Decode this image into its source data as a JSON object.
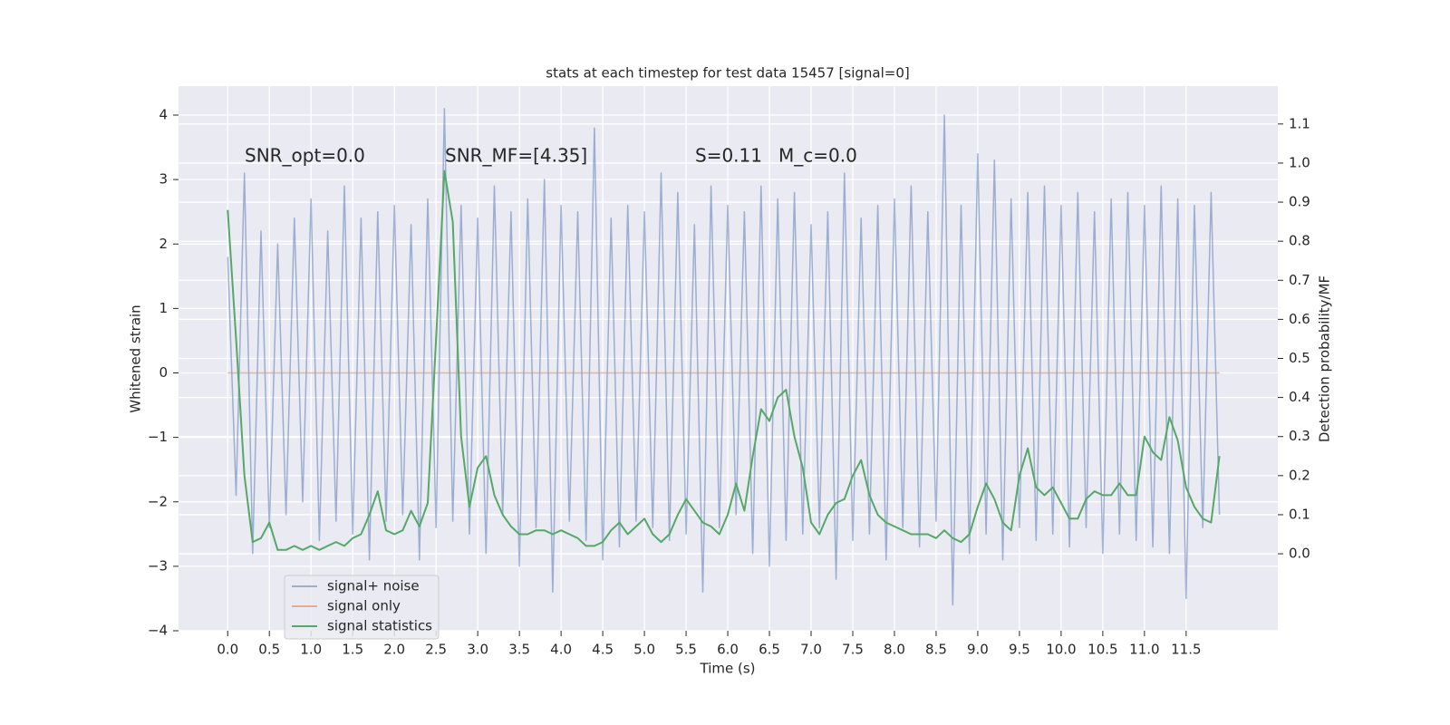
{
  "chart_data": {
    "type": "line",
    "title": "stats at each timestep for test data 15457 [signal=0]",
    "xlabel": "Time (s)",
    "ylabel": "Whitened strain",
    "y2label": "Detection probability/MF",
    "annotations": [
      "SNR_opt=0.0",
      "SNR_MF=[4.35]",
      "S=0.11",
      "M_c=0.0"
    ],
    "grid": true,
    "legend": "lower left",
    "background": "#eaeaf2",
    "x": [
      0.0,
      0.1,
      0.2,
      0.3,
      0.4,
      0.5,
      0.6,
      0.7,
      0.8,
      0.9,
      1.0,
      1.1,
      1.2,
      1.3,
      1.4,
      1.5,
      1.6,
      1.7,
      1.8,
      1.9,
      2.0,
      2.1,
      2.2,
      2.3,
      2.4,
      2.5,
      2.6,
      2.7,
      2.8,
      2.9,
      3.0,
      3.1,
      3.2,
      3.3,
      3.4,
      3.5,
      3.6,
      3.7,
      3.8,
      3.9,
      4.0,
      4.1,
      4.2,
      4.3,
      4.4,
      4.5,
      4.6,
      4.7,
      4.8,
      4.9,
      5.0,
      5.1,
      5.2,
      5.3,
      5.4,
      5.5,
      5.6,
      5.7,
      5.8,
      5.9,
      6.0,
      6.1,
      6.2,
      6.3,
      6.4,
      6.5,
      6.6,
      6.7,
      6.8,
      6.9,
      7.0,
      7.1,
      7.2,
      7.3,
      7.4,
      7.5,
      7.6,
      7.7,
      7.8,
      7.9,
      8.0,
      8.1,
      8.2,
      8.3,
      8.4,
      8.5,
      8.6,
      8.7,
      8.8,
      8.9,
      9.0,
      9.1,
      9.2,
      9.3,
      9.4,
      9.5,
      9.6,
      9.7,
      9.8,
      9.9,
      10.0,
      10.1,
      10.2,
      10.3,
      10.4,
      10.5,
      10.6,
      10.7,
      10.8,
      10.9,
      11.0,
      11.1,
      11.2,
      11.3,
      11.4,
      11.5,
      11.6,
      11.7,
      11.8,
      11.9
    ],
    "series": [
      {
        "name": "signal+ noise",
        "color": "#4c72b0",
        "opacity": 0.5,
        "values": [
          1.8,
          -1.9,
          3.1,
          -2.8,
          2.2,
          -2.4,
          2.0,
          -2.2,
          2.4,
          -2.0,
          2.7,
          -2.6,
          2.2,
          -2.3,
          2.9,
          -2.5,
          2.4,
          -2.9,
          2.5,
          -2.3,
          2.6,
          -2.2,
          2.3,
          -2.9,
          2.7,
          -2.4,
          4.1,
          -2.3,
          2.6,
          -2.5,
          2.4,
          -2.8,
          2.9,
          -2.2,
          2.5,
          -3.0,
          2.7,
          -2.4,
          3.0,
          -3.4,
          2.6,
          -2.3,
          2.5,
          -2.6,
          3.8,
          -2.9,
          2.4,
          -2.7,
          2.6,
          -2.3,
          2.5,
          -2.4,
          3.1,
          -2.6,
          2.8,
          -2.5,
          2.3,
          -3.4,
          2.9,
          -2.4,
          2.6,
          -2.2,
          2.5,
          -2.8,
          2.9,
          -3.0,
          2.7,
          -2.6,
          2.8,
          -2.5,
          2.3,
          -2.4,
          2.5,
          -3.2,
          3.1,
          -2.6,
          2.4,
          -2.5,
          2.6,
          -2.9,
          2.7,
          -2.4,
          2.9,
          -2.7,
          2.5,
          -2.3,
          4.0,
          -3.6,
          2.6,
          -2.8,
          3.4,
          -2.5,
          3.3,
          -2.9,
          2.7,
          -2.4,
          2.8,
          -2.6,
          2.9,
          -2.5,
          2.6,
          -2.7,
          2.8,
          -2.4,
          2.5,
          -2.8,
          2.7,
          -2.5,
          2.8,
          -2.6,
          2.6,
          -2.7,
          2.9,
          -2.8,
          2.7,
          -3.5,
          2.6,
          -2.4,
          2.8,
          -2.2
        ]
      },
      {
        "name": "signal only",
        "color": "#dd8452",
        "opacity": 0.6,
        "x": [
          0.0,
          11.9
        ],
        "values": [
          0,
          0
        ]
      },
      {
        "name": "signal statistics",
        "color": "#55a868",
        "axis": "y2",
        "values": [
          0.88,
          0.55,
          0.2,
          0.03,
          0.04,
          0.08,
          0.01,
          0.01,
          0.02,
          0.01,
          0.02,
          0.01,
          0.02,
          0.03,
          0.02,
          0.04,
          0.05,
          0.1,
          0.16,
          0.06,
          0.05,
          0.06,
          0.11,
          0.07,
          0.13,
          0.55,
          0.98,
          0.85,
          0.3,
          0.12,
          0.22,
          0.25,
          0.15,
          0.1,
          0.07,
          0.05,
          0.05,
          0.06,
          0.06,
          0.05,
          0.06,
          0.05,
          0.04,
          0.02,
          0.02,
          0.03,
          0.06,
          0.08,
          0.05,
          0.07,
          0.09,
          0.05,
          0.03,
          0.05,
          0.1,
          0.14,
          0.11,
          0.08,
          0.07,
          0.05,
          0.1,
          0.18,
          0.11,
          0.25,
          0.37,
          0.34,
          0.4,
          0.42,
          0.3,
          0.22,
          0.08,
          0.05,
          0.1,
          0.13,
          0.14,
          0.2,
          0.24,
          0.15,
          0.1,
          0.08,
          0.07,
          0.06,
          0.05,
          0.05,
          0.05,
          0.04,
          0.06,
          0.04,
          0.03,
          0.05,
          0.12,
          0.18,
          0.14,
          0.08,
          0.06,
          0.2,
          0.27,
          0.17,
          0.15,
          0.17,
          0.13,
          0.09,
          0.09,
          0.14,
          0.16,
          0.15,
          0.15,
          0.18,
          0.15,
          0.15,
          0.3,
          0.26,
          0.24,
          0.35,
          0.29,
          0.17,
          0.12,
          0.09,
          0.08,
          0.25
        ]
      }
    ],
    "xlim": [
      -0.59,
      12.6
    ],
    "xticks": [
      {
        "value": 0,
        "label": "0.0"
      },
      0.5,
      {
        "value": 1,
        "label": "1.0"
      },
      1.5,
      {
        "value": 2,
        "label": "2.0"
      },
      2.5,
      {
        "value": 3,
        "label": "3.0"
      },
      3.5,
      {
        "value": 4,
        "label": "4.0"
      },
      4.5,
      {
        "value": 5,
        "label": "5.0"
      },
      5.5,
      {
        "value": 6,
        "label": "6.0"
      },
      6.5,
      {
        "value": 7,
        "label": "7.0"
      },
      7.5,
      {
        "value": 8,
        "label": "8.0"
      },
      8.5,
      {
        "value": 9,
        "label": "9.0"
      },
      9.5,
      {
        "value": 10,
        "label": "10.0"
      },
      10.5,
      {
        "value": 11,
        "label": "11.0"
      },
      11.5
    ],
    "ylim": [
      -4.0,
      4.45
    ],
    "yticks": [
      {
        "value": -4,
        "label": "−4"
      },
      {
        "value": -3,
        "label": "−3"
      },
      {
        "value": -2,
        "label": "−2"
      },
      {
        "value": -1,
        "label": "−1"
      },
      0,
      1,
      2,
      3,
      4
    ],
    "y2lim": [
      -0.197,
      1.197
    ],
    "y2ticks": [
      {
        "value": 0,
        "label": "0.0"
      },
      0.1,
      0.2,
      0.3,
      0.4,
      0.5,
      0.6,
      0.7,
      0.8,
      0.9,
      {
        "value": 1,
        "label": "1.0"
      },
      1.1
    ]
  }
}
